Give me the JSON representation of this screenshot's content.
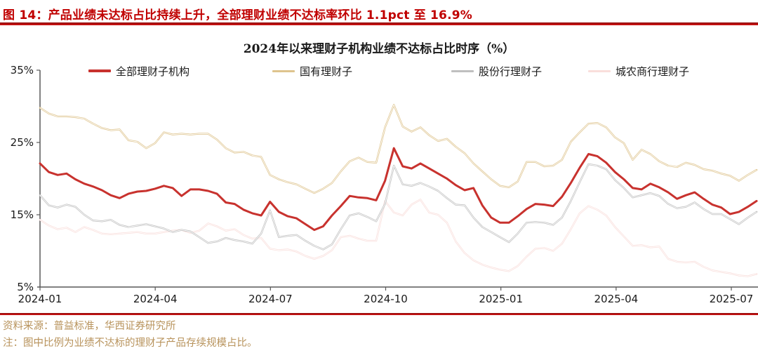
{
  "header": {
    "title": "图 14：产品业绩未达标占比持续上升，全部理财业绩不达标率环比 1.1pct 至 16.9%"
  },
  "chart_data": {
    "type": "line",
    "title": "2024年以来理财子机构业绩不达标占比时序（%）",
    "xlabel": "",
    "ylabel": "",
    "ylim": [
      5,
      35
    ],
    "grid": false,
    "legend_position": "top",
    "y_ticks": [
      35,
      25,
      15,
      5
    ],
    "y_tick_labels": [
      "35%",
      "25%",
      "15%",
      "5%"
    ],
    "x_tick_labels": [
      "2024-01",
      "2024-04",
      "2024-07",
      "2024-10",
      "2025-01",
      "2025-04",
      "2025-07"
    ],
    "x_note": "weekly observations from 2024-01 to 2025-07",
    "series": [
      {
        "name": "全部理财子机构",
        "color": "#c8322e",
        "width": 3,
        "hollow": false,
        "values": [
          22.1,
          20.9,
          20.5,
          20.7,
          19.9,
          19.3,
          18.9,
          18.4,
          17.7,
          17.3,
          17.9,
          18.2,
          18.3,
          18.6,
          19.0,
          18.7,
          17.6,
          18.5,
          18.5,
          18.3,
          17.9,
          16.7,
          16.5,
          15.7,
          15.2,
          14.9,
          16.8,
          15.4,
          14.8,
          14.5,
          13.7,
          12.9,
          13.4,
          14.9,
          16.2,
          17.6,
          17.4,
          17.3,
          17.0,
          19.7,
          24.2,
          21.7,
          21.4,
          22.1,
          21.4,
          20.7,
          20.0,
          19.1,
          18.4,
          18.7,
          16.3,
          14.6,
          13.9,
          13.9,
          14.8,
          15.8,
          16.5,
          16.4,
          16.2,
          17.5,
          19.4,
          21.5,
          23.4,
          23.1,
          22.2,
          20.9,
          19.9,
          18.7,
          18.5,
          19.3,
          18.8,
          18.1,
          17.2,
          17.7,
          18.1,
          17.2,
          16.4,
          16.0,
          15.1,
          15.4,
          16.1,
          16.9
        ]
      },
      {
        "name": "国有理财子",
        "color": "#dec48e",
        "width": 2.4,
        "hollow": true,
        "values": [
          29.8,
          29.0,
          28.6,
          28.6,
          28.5,
          28.3,
          27.6,
          27.0,
          26.7,
          26.8,
          25.3,
          25.1,
          24.2,
          24.9,
          26.4,
          26.1,
          26.2,
          26.1,
          26.2,
          26.2,
          25.4,
          24.2,
          23.6,
          23.7,
          23.2,
          23.0,
          20.5,
          19.9,
          19.5,
          19.2,
          18.6,
          18.0,
          18.6,
          19.4,
          21.0,
          22.4,
          22.9,
          22.3,
          22.2,
          27.1,
          30.2,
          27.2,
          26.5,
          27.1,
          26.0,
          25.2,
          25.5,
          24.4,
          23.5,
          22.1,
          21.0,
          19.9,
          19.0,
          18.8,
          19.6,
          22.3,
          22.3,
          21.7,
          21.8,
          22.6,
          25.1,
          26.4,
          27.6,
          27.7,
          27.1,
          25.7,
          24.9,
          22.6,
          24.0,
          23.4,
          22.4,
          21.8,
          21.6,
          22.2,
          21.9,
          21.3,
          21.1,
          20.7,
          20.4,
          19.7,
          20.5,
          21.2
        ]
      },
      {
        "name": "股份行理财子",
        "color": "#bfbfbf",
        "width": 2.4,
        "hollow": true,
        "values": [
          17.7,
          16.3,
          16.0,
          16.4,
          16.1,
          15.0,
          14.2,
          14.1,
          14.3,
          13.6,
          13.3,
          13.5,
          13.7,
          13.4,
          13.1,
          12.6,
          12.9,
          12.7,
          11.9,
          11.1,
          11.3,
          11.8,
          11.5,
          11.3,
          11.0,
          12.4,
          15.6,
          11.9,
          12.1,
          12.2,
          11.4,
          10.7,
          10.2,
          10.9,
          13.0,
          14.9,
          15.2,
          14.7,
          14.1,
          16.5,
          21.8,
          19.2,
          19.0,
          19.4,
          18.9,
          18.3,
          17.3,
          16.4,
          16.3,
          14.6,
          13.3,
          12.6,
          11.9,
          11.2,
          12.4,
          13.9,
          14.0,
          13.9,
          13.6,
          14.6,
          16.9,
          19.5,
          22.0,
          21.8,
          21.3,
          19.8,
          18.7,
          17.4,
          17.7,
          18.0,
          17.6,
          16.5,
          15.9,
          16.1,
          16.7,
          15.8,
          15.1,
          15.1,
          14.4,
          13.7,
          14.6,
          15.4
        ]
      },
      {
        "name": "城农商行理财子",
        "color": "#f9dedb",
        "width": 2.4,
        "hollow": true,
        "values": [
          14.3,
          13.5,
          13.0,
          13.2,
          12.6,
          13.3,
          12.9,
          12.4,
          12.3,
          12.4,
          12.5,
          12.6,
          12.4,
          12.4,
          12.6,
          12.8,
          12.9,
          12.5,
          12.8,
          13.8,
          13.4,
          12.8,
          13.0,
          12.2,
          11.7,
          11.8,
          10.3,
          10.1,
          10.2,
          9.9,
          9.3,
          8.9,
          9.3,
          10.1,
          11.9,
          12.1,
          11.7,
          11.4,
          11.4,
          16.9,
          15.3,
          14.9,
          16.4,
          17.1,
          15.3,
          15.0,
          13.9,
          11.3,
          9.7,
          8.7,
          8.1,
          7.7,
          7.4,
          7.2,
          7.9,
          9.2,
          10.3,
          10.4,
          10.0,
          11.0,
          13.0,
          15.2,
          16.2,
          15.7,
          14.9,
          13.3,
          12.0,
          10.7,
          10.8,
          10.5,
          10.6,
          8.9,
          8.5,
          8.4,
          8.5,
          7.8,
          7.3,
          7.1,
          6.9,
          6.6,
          6.5,
          6.8
        ]
      }
    ]
  },
  "footer": {
    "source": "资料来源：普益标准，华西证券研究所",
    "note": "注：图中比例为业绩不达标的理财子产品存续规模占比。"
  },
  "colors": {
    "accent_red": "#c00000",
    "axis": "#595959",
    "footer_text": "#b8935c"
  }
}
